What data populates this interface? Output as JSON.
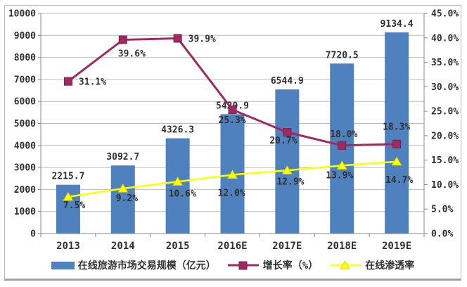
{
  "chart_data": {
    "type": "combo",
    "categories": [
      "2013",
      "2014",
      "2015",
      "2016E",
      "2017E",
      "2018E",
      "2019E"
    ],
    "series": [
      {
        "name": "在线旅游市场交易规模（亿元）",
        "type": "bar",
        "axis": "left",
        "color": "#4E81BD",
        "values": [
          2215.7,
          3092.7,
          4326.3,
          5420.9,
          6544.9,
          7720.5,
          9134.4
        ],
        "labels": [
          "2215.7",
          "3092.7",
          "4326.3",
          "5420.9",
          "6544.9",
          "7720.5",
          "9134.4"
        ]
      },
      {
        "name": "增长率（%）",
        "type": "line",
        "axis": "right",
        "color": "#9E2A5E",
        "marker": "square",
        "marker_edge": "#7C1F49",
        "values": [
          31.1,
          39.6,
          39.9,
          25.3,
          20.7,
          18.0,
          18.3
        ],
        "labels": [
          "31.1%",
          "39.6%",
          "39.9%",
          "25.3%",
          "20.7%",
          "18.0%",
          "18.3%"
        ]
      },
      {
        "name": "在线渗透率",
        "type": "line",
        "axis": "right",
        "color": "#FFFF00",
        "marker": "triangle",
        "marker_edge": "#e0df00",
        "values": [
          7.5,
          9.2,
          10.6,
          12.0,
          12.9,
          13.9,
          14.7
        ],
        "labels": [
          "7.5%",
          "9.2%",
          "10.6%",
          "12.0%",
          "12.9%",
          "13.9%",
          "14.7%"
        ]
      }
    ],
    "left_axis": {
      "min": 0,
      "max": 10000,
      "step": 1000,
      "tick_labels": [
        "0",
        "1000",
        "2000",
        "3000",
        "4000",
        "5000",
        "6000",
        "7000",
        "8000",
        "9000",
        "10000"
      ]
    },
    "right_axis": {
      "min": 0,
      "max": 45,
      "step": 5,
      "tick_labels": [
        "0.0%",
        "5.0%",
        "10.0%",
        "15.0%",
        "20.0%",
        "25.0%",
        "30.0%",
        "35.0%",
        "40.0%",
        "45.0%"
      ]
    },
    "grid": true,
    "legend_position": "bottom",
    "colors": {
      "gridline": "#bcbcbc",
      "axis": "#8a8a8a",
      "text": "#303030",
      "background": "#ffffff"
    }
  }
}
